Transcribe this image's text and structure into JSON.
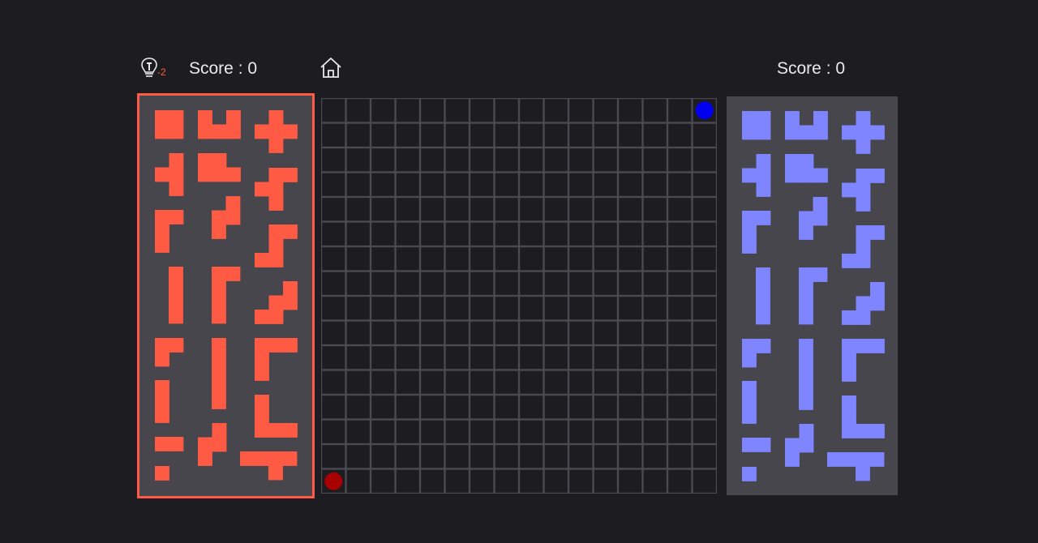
{
  "header": {
    "left_score_text": "Score : 0",
    "right_score_text": "Score : 0",
    "hint_count": "-2",
    "hint_icon": "lightbulb-icon",
    "home_icon": "home-icon"
  },
  "colors": {
    "background": "#1d1c21",
    "panel": "#46464c",
    "player1": "#ff5a44",
    "player2": "#7f84ff",
    "grid_line": "#4a4a50",
    "player1_start": "#a80000",
    "player2_start": "#0000ee"
  },
  "board": {
    "rows": 16,
    "cols": 16,
    "player1_start": {
      "row": 15,
      "col": 0
    },
    "player2_start": {
      "row": 0,
      "col": 15
    }
  },
  "pieces": [
    {
      "name": "piece-o4",
      "cells": [
        [
          0,
          0
        ],
        [
          1,
          0
        ],
        [
          0,
          1
        ],
        [
          1,
          1
        ]
      ]
    },
    {
      "name": "piece-u5",
      "cells": [
        [
          0,
          0
        ],
        [
          2,
          0
        ],
        [
          0,
          1
        ],
        [
          1,
          1
        ],
        [
          2,
          1
        ]
      ]
    },
    {
      "name": "piece-x5",
      "cells": [
        [
          1,
          0
        ],
        [
          0,
          1
        ],
        [
          1,
          1
        ],
        [
          2,
          1
        ],
        [
          1,
          2
        ]
      ]
    },
    {
      "name": "piece-t4",
      "cells": [
        [
          1,
          0
        ],
        [
          0,
          1
        ],
        [
          1,
          1
        ],
        [
          1,
          2
        ]
      ]
    },
    {
      "name": "piece-p5",
      "cells": [
        [
          0,
          0
        ],
        [
          1,
          0
        ],
        [
          0,
          1
        ],
        [
          1,
          1
        ],
        [
          2,
          1
        ]
      ]
    },
    {
      "name": "piece-f5",
      "cells": [
        [
          1,
          0
        ],
        [
          2,
          0
        ],
        [
          0,
          1
        ],
        [
          1,
          1
        ],
        [
          1,
          2
        ]
      ]
    },
    {
      "name": "piece-v3",
      "cells": [
        [
          0,
          0
        ],
        [
          1,
          0
        ],
        [
          0,
          1
        ],
        [
          0,
          2
        ]
      ]
    },
    {
      "name": "piece-n4",
      "cells": [
        [
          1,
          0
        ],
        [
          0,
          1
        ],
        [
          1,
          1
        ],
        [
          0,
          2
        ]
      ]
    },
    {
      "name": "piece-s5",
      "cells": [
        [
          1,
          0
        ],
        [
          2,
          0
        ],
        [
          1,
          1
        ],
        [
          0,
          2
        ],
        [
          1,
          2
        ]
      ]
    },
    {
      "name": "piece-i4",
      "cells": [
        [
          0,
          0
        ],
        [
          0,
          1
        ],
        [
          0,
          2
        ],
        [
          0,
          3
        ]
      ]
    },
    {
      "name": "piece-l5",
      "cells": [
        [
          0,
          0
        ],
        [
          1,
          0
        ],
        [
          0,
          1
        ],
        [
          0,
          2
        ],
        [
          0,
          3
        ]
      ]
    },
    {
      "name": "piece-w5",
      "cells": [
        [
          2,
          0
        ],
        [
          1,
          1
        ],
        [
          2,
          1
        ],
        [
          0,
          2
        ],
        [
          1,
          2
        ]
      ]
    },
    {
      "name": "piece-v3b",
      "cells": [
        [
          0,
          0
        ],
        [
          1,
          0
        ],
        [
          0,
          1
        ]
      ]
    },
    {
      "name": "piece-i5",
      "cells": [
        [
          0,
          0
        ],
        [
          0,
          1
        ],
        [
          0,
          2
        ],
        [
          0,
          3
        ],
        [
          0,
          4
        ]
      ]
    },
    {
      "name": "piece-v5",
      "cells": [
        [
          0,
          0
        ],
        [
          1,
          0
        ],
        [
          2,
          0
        ],
        [
          0,
          1
        ],
        [
          0,
          2
        ]
      ]
    },
    {
      "name": "piece-i3",
      "cells": [
        [
          0,
          0
        ],
        [
          0,
          1
        ],
        [
          0,
          2
        ]
      ]
    },
    {
      "name": "piece-y5",
      "cells": [
        [
          0,
          0
        ],
        [
          0,
          1
        ],
        [
          0,
          2
        ],
        [
          1,
          2
        ],
        [
          2,
          2
        ]
      ]
    },
    {
      "name": "piece-i2",
      "cells": [
        [
          0,
          0
        ],
        [
          1,
          0
        ]
      ]
    },
    {
      "name": "piece-z4",
      "cells": [
        [
          1,
          0
        ],
        [
          0,
          1
        ],
        [
          1,
          1
        ],
        [
          0,
          2
        ]
      ]
    },
    {
      "name": "piece-t5",
      "cells": [
        [
          0,
          0
        ],
        [
          1,
          0
        ],
        [
          2,
          0
        ],
        [
          3,
          0
        ],
        [
          2,
          1
        ]
      ]
    },
    {
      "name": "piece-mono",
      "cells": [
        [
          0,
          0
        ]
      ]
    }
  ]
}
